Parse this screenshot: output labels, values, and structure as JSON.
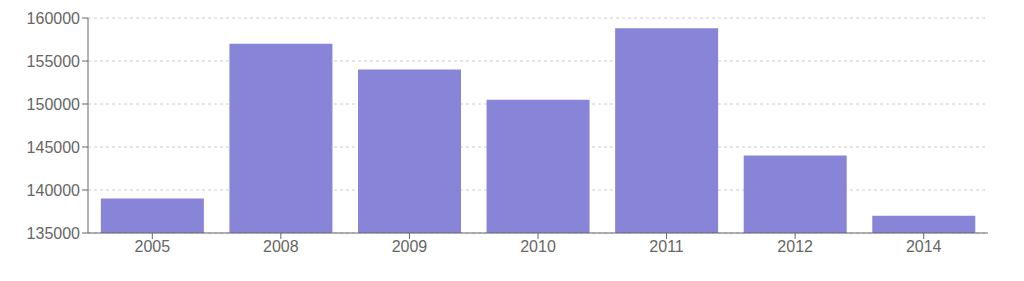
{
  "chart_data": {
    "type": "bar",
    "categories": [
      "2005",
      "2008",
      "2009",
      "2010",
      "2011",
      "2012",
      "2014"
    ],
    "values": [
      139000,
      157000,
      154000,
      150500,
      158800,
      144000,
      137000
    ],
    "color": "#8884d8",
    "ylim": [
      135000,
      160000
    ],
    "yticks": [
      135000,
      140000,
      145000,
      150000,
      155000,
      160000
    ],
    "grid": true
  }
}
